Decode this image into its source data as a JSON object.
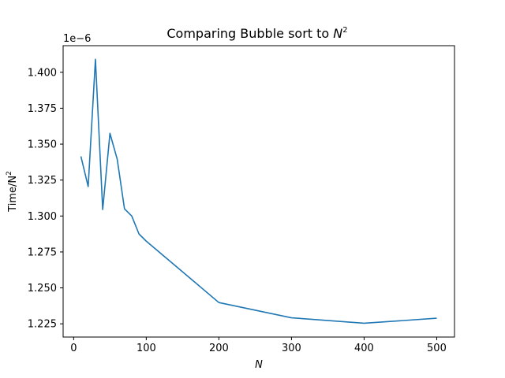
{
  "chart_data": {
    "type": "line",
    "title": "Comparing Bubble sort to",
    "title_math": "N",
    "title_math_sup": "2",
    "xlabel": "N",
    "ylabel": "Time/N",
    "ylabel_sup": "2",
    "offset_text": "1e−6",
    "xlim": [
      -14.5,
      524.5
    ],
    "ylim": [
      1.2158,
      1.4185
    ],
    "x_ticks": [
      0,
      100,
      200,
      300,
      400,
      500
    ],
    "x_tick_labels": [
      "0",
      "100",
      "200",
      "300",
      "400",
      "500"
    ],
    "y_ticks": [
      1.225,
      1.25,
      1.275,
      1.3,
      1.325,
      1.35,
      1.375,
      1.4
    ],
    "y_tick_labels": [
      "1.225",
      "1.250",
      "1.275",
      "1.300",
      "1.325",
      "1.350",
      "1.375",
      "1.400"
    ],
    "grid": false,
    "series": [
      {
        "color": "#1f77b4",
        "x": [
          10,
          20,
          30,
          40,
          50,
          60,
          70,
          80,
          90,
          100,
          200,
          300,
          400,
          500
        ],
        "y": [
          1.3415,
          1.3205,
          1.409,
          1.3045,
          1.3575,
          1.3395,
          1.305,
          1.3,
          1.2875,
          1.2825,
          1.2398,
          1.2292,
          1.2254,
          1.2289
        ]
      }
    ]
  }
}
